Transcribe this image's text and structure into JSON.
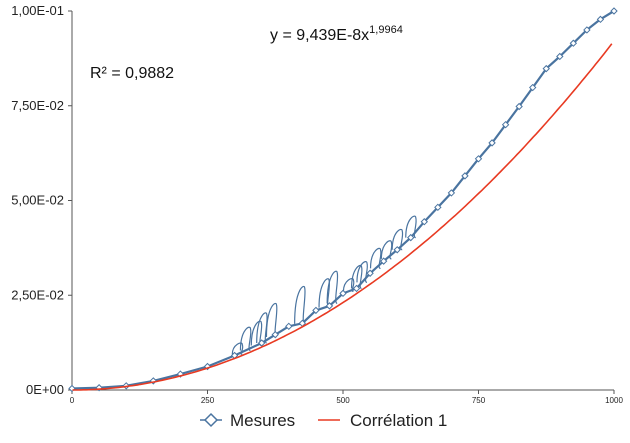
{
  "chart_data": {
    "type": "scatter",
    "xlim": [
      0,
      1000
    ],
    "ylim": [
      0,
      0.1
    ],
    "x_ticks": [
      {
        "value": 0,
        "label": "0"
      },
      {
        "value": 250,
        "label": "250"
      },
      {
        "value": 500,
        "label": "500"
      },
      {
        "value": 750,
        "label": "750"
      },
      {
        "value": 1000,
        "label": "1000"
      }
    ],
    "y_ticks": [
      {
        "value": 0,
        "label": "0E+00"
      },
      {
        "value": 0.025,
        "label": "2,50E-02"
      },
      {
        "value": 0.05,
        "label": "5,00E-02"
      },
      {
        "value": 0.075,
        "label": "7,50E-02"
      },
      {
        "value": 0.1,
        "label": "1,00E-01"
      }
    ],
    "grid": false,
    "legend_position": "bottom",
    "series": [
      {
        "name": "Mesures",
        "color": "#4a74a0",
        "marker": "diamond",
        "points": [
          [
            0,
            0.0004
          ],
          [
            50,
            0.0006
          ],
          [
            100,
            0.0011
          ],
          [
            150,
            0.0024
          ],
          [
            200,
            0.0042
          ],
          [
            250,
            0.0062
          ],
          [
            300,
            0.0091
          ],
          [
            350,
            0.0124
          ],
          [
            375,
            0.0146
          ],
          [
            400,
            0.0168
          ],
          [
            425,
            0.0176
          ],
          [
            450,
            0.021
          ],
          [
            475,
            0.0222
          ],
          [
            500,
            0.0255
          ],
          [
            525,
            0.0268
          ],
          [
            550,
            0.0308
          ],
          [
            575,
            0.034
          ],
          [
            600,
            0.037
          ],
          [
            625,
            0.0402
          ],
          [
            650,
            0.0444
          ],
          [
            675,
            0.0482
          ],
          [
            700,
            0.052
          ],
          [
            725,
            0.0565
          ],
          [
            750,
            0.061
          ],
          [
            775,
            0.0652
          ],
          [
            800,
            0.07
          ],
          [
            825,
            0.0748
          ],
          [
            850,
            0.0798
          ],
          [
            875,
            0.0848
          ],
          [
            900,
            0.088
          ],
          [
            925,
            0.0915
          ],
          [
            950,
            0.095
          ],
          [
            975,
            0.0978
          ],
          [
            1000,
            0.1
          ]
        ],
        "spikes": [
          [
            305,
            0.012
          ],
          [
            320,
            0.0162
          ],
          [
            340,
            0.0178
          ],
          [
            350,
            0.02
          ],
          [
            368,
            0.0225
          ],
          [
            420,
            0.027
          ],
          [
            465,
            0.029
          ],
          [
            480,
            0.031
          ],
          [
            510,
            0.029
          ],
          [
            525,
            0.0325
          ],
          [
            535,
            0.0335
          ],
          [
            560,
            0.037
          ],
          [
            580,
            0.039
          ],
          [
            600,
            0.042
          ],
          [
            625,
            0.0455
          ]
        ]
      },
      {
        "name": "Corrélation 1",
        "color": "#e83a22",
        "type": "line",
        "coefficient": 9.439e-08,
        "exponent": 1.9964
      }
    ],
    "annotations": {
      "equation_prefix": "y = 9,439E-8x",
      "equation_exponent": "1,9964",
      "r_squared": "R² = 0,9882"
    }
  }
}
